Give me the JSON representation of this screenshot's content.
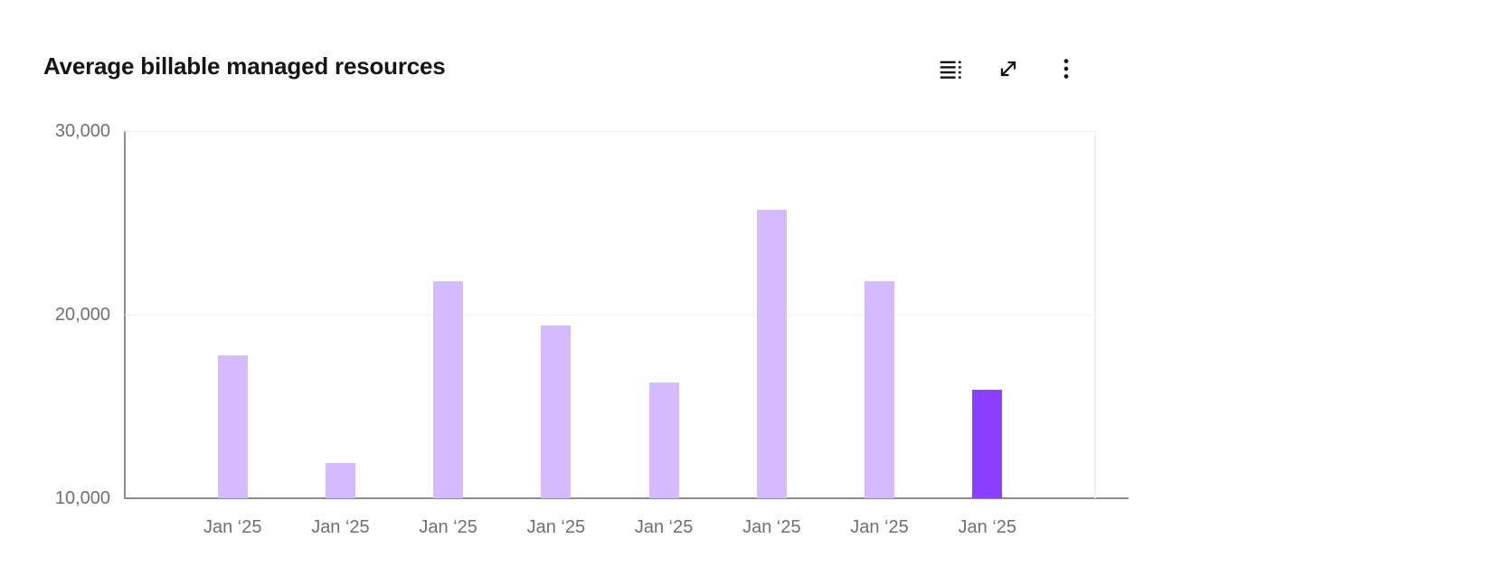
{
  "header": {
    "title": "Average billable managed resources",
    "toolbar": {
      "data_table_label": "Show data table",
      "maximize_label": "Maximize",
      "overflow_label": "Options"
    }
  },
  "colors": {
    "bar": "#d4bbff",
    "bar_highlight": "#8a3ffc",
    "axis": "#8d8d8d",
    "grid": "#f0f0f0",
    "title_text": "#161616",
    "tick_text": "#6f6f6f",
    "icon": "#161616"
  },
  "chart_data": {
    "type": "bar",
    "title": "Average billable managed resources",
    "categories": [
      "Jan ‘25",
      "Jan ‘25",
      "Jan ‘25",
      "Jan ‘25",
      "Jan ‘25",
      "Jan ‘25",
      "Jan ‘25",
      "Jan ‘25"
    ],
    "values": [
      17800,
      11900,
      21800,
      19400,
      16300,
      25700,
      21800,
      15900
    ],
    "highlight_index": 7,
    "xlabel": "",
    "ylabel": "",
    "ylim": [
      10000,
      30000
    ],
    "yticks": [
      {
        "value": 10000,
        "label": "10,000"
      },
      {
        "value": 20000,
        "label": "20,000"
      },
      {
        "value": 30000,
        "label": "30,000"
      }
    ],
    "grid": "horizontal",
    "legend": "none"
  }
}
